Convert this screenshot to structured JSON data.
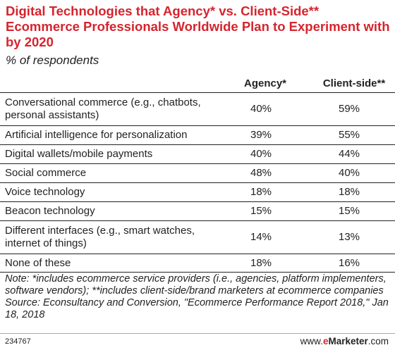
{
  "chart_data": {
    "type": "table",
    "title": "Digital Technologies that Agency* vs. Client-Side** Ecommerce Professionals Worldwide Plan to Experiment with by 2020",
    "subtitle": "% of respondents",
    "columns": [
      "",
      "Agency*",
      "Client-side**"
    ],
    "rows": [
      {
        "label": [
          "Conversational commerce (e.g., chatbots,",
          "personal assistants)"
        ],
        "agency": "40%",
        "client": "59%",
        "height": 47
      },
      {
        "label": [
          "Artificial intelligence for personalization"
        ],
        "agency": "39%",
        "client": "55%",
        "height": 27
      },
      {
        "label": [
          "Digital wallets/mobile payments"
        ],
        "agency": "40%",
        "client": "44%",
        "height": 27
      },
      {
        "label": [
          "Social commerce"
        ],
        "agency": "48%",
        "client": "40%",
        "height": 27
      },
      {
        "label": [
          "Voice technology"
        ],
        "agency": "18%",
        "client": "18%",
        "height": 27
      },
      {
        "label": [
          "Beacon technology"
        ],
        "agency": "15%",
        "client": "15%",
        "height": 27
      },
      {
        "label": [
          "Different interfaces (e.g., smart watches,",
          "internet of things)"
        ],
        "agency": "14%",
        "client": "13%",
        "height": 47
      },
      {
        "label": [
          "None of these"
        ],
        "agency": "18%",
        "client": "16%",
        "height": 27
      }
    ],
    "note": "Note: *includes ecommerce service providers (i.e., agencies, platform implementers, software vendors); **includes client-side/brand marketers at ecommerce companies",
    "source": "Source: Econsultancy and Conversion, \"Ecommerce Performance Report 2018,\" Jan 18, 2018"
  },
  "footer": {
    "chart_id": "234767",
    "brand_prefix": "www.",
    "brand_e": "e",
    "brand_name": "Marketer",
    "brand_suffix": ".com"
  }
}
